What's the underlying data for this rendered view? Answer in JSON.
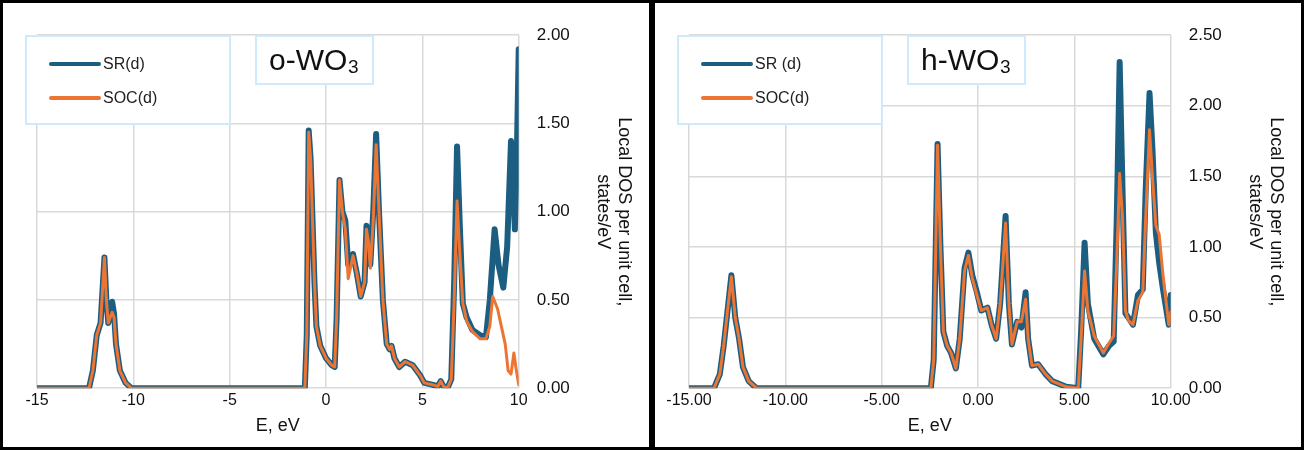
{
  "chart_data": [
    {
      "type": "line",
      "title": "o-WO₃",
      "xlabel": "E, eV",
      "ylabel": "Local DOS per unit cell, states/eV",
      "xlim": [
        -15,
        10
      ],
      "xticks": [
        -15,
        -10,
        -5,
        0,
        5,
        10
      ],
      "ylim": [
        0,
        2
      ],
      "yticks": [
        {
          "value": 0,
          "label": "0.00"
        },
        {
          "value": 0.5,
          "label": "0.50"
        },
        {
          "value": 1,
          "label": "1.00"
        },
        {
          "value": 1.5,
          "label": "1.50"
        },
        {
          "value": 2,
          "label": "2.00"
        }
      ],
      "grid": true,
      "legend": "top left",
      "series": [
        {
          "name": "SR(d)",
          "color": "#1b5e82",
          "x": [
            -15,
            -12.3,
            -12.1,
            -11.9,
            -11.7,
            -11.5,
            -11.4,
            -11.3,
            -11.2,
            -11.1,
            -11.0,
            -10.9,
            -10.7,
            -10.4,
            -10.1,
            -1.1,
            -1.0,
            -0.9,
            -0.8,
            -0.6,
            -0.5,
            -0.3,
            0,
            0.3,
            0.45,
            0.55,
            0.7,
            0.85,
            1.0,
            1.15,
            1.4,
            1.6,
            1.8,
            2.0,
            2.1,
            2.2,
            2.3,
            2.45,
            2.6,
            2.75,
            2.95,
            3.15,
            3.3,
            3.4,
            3.55,
            3.8,
            4.1,
            4.5,
            4.9,
            5.1,
            5.5,
            5.8,
            5.95,
            6.1,
            6.3,
            6.5,
            6.65,
            6.8,
            6.95,
            7.1,
            7.3,
            7.6,
            8.0,
            8.3,
            8.5,
            8.75,
            8.95,
            9.2,
            9.4,
            9.6,
            9.7,
            9.8,
            9.9,
            10
          ],
          "values": [
            0,
            0,
            0.1,
            0.3,
            0.37,
            0.74,
            0.5,
            0.37,
            0.42,
            0.49,
            0.42,
            0.25,
            0.1,
            0.03,
            0,
            0,
            0.3,
            1.46,
            1.3,
            0.6,
            0.35,
            0.24,
            0.17,
            0.13,
            0.12,
            0.4,
            1.18,
            1.0,
            0.95,
            0.7,
            0.76,
            0.65,
            0.52,
            0.6,
            0.92,
            0.85,
            0.7,
            1.0,
            1.44,
            1.0,
            0.5,
            0.25,
            0.22,
            0.24,
            0.17,
            0.12,
            0.15,
            0.13,
            0.07,
            0.03,
            0.02,
            0.01,
            0.04,
            0.01,
            0,
            0.05,
            0.6,
            1.37,
            0.9,
            0.48,
            0.4,
            0.33,
            0.3,
            0.29,
            0.5,
            0.9,
            0.7,
            0.57,
            0.8,
            1.4,
            1.2,
            0.9,
            1.3,
            1.92
          ]
        },
        {
          "name": "SOC(d)",
          "color": "#ec7533",
          "x": [
            -15,
            -12.3,
            -12.1,
            -11.9,
            -11.7,
            -11.5,
            -11.4,
            -11.3,
            -11.2,
            -11.1,
            -11.0,
            -10.9,
            -10.7,
            -10.4,
            -10.1,
            -1.1,
            -1.0,
            -0.9,
            -0.8,
            -0.6,
            -0.5,
            -0.3,
            0,
            0.3,
            0.45,
            0.55,
            0.7,
            0.85,
            1.0,
            1.15,
            1.4,
            1.6,
            1.8,
            2.0,
            2.1,
            2.2,
            2.3,
            2.45,
            2.6,
            2.75,
            2.95,
            3.15,
            3.3,
            3.4,
            3.55,
            3.8,
            4.1,
            4.5,
            4.9,
            5.1,
            5.5,
            5.8,
            5.95,
            6.1,
            6.3,
            6.5,
            6.65,
            6.8,
            6.95,
            7.1,
            7.3,
            7.6,
            8.0,
            8.3,
            8.5,
            8.65,
            8.9,
            9.1,
            9.3,
            9.45,
            9.6,
            9.75,
            9.85,
            10
          ],
          "values": [
            0,
            0,
            0.1,
            0.3,
            0.37,
            0.74,
            0.5,
            0.37,
            0.4,
            0.43,
            0.4,
            0.25,
            0.1,
            0.03,
            0,
            0,
            0.3,
            1.45,
            1.3,
            0.6,
            0.35,
            0.24,
            0.17,
            0.13,
            0.12,
            0.4,
            1.18,
            1.0,
            0.9,
            0.62,
            0.75,
            0.65,
            0.52,
            0.6,
            0.9,
            0.83,
            0.68,
            0.95,
            1.38,
            1.0,
            0.5,
            0.25,
            0.22,
            0.24,
            0.17,
            0.12,
            0.15,
            0.13,
            0.07,
            0.03,
            0.02,
            0.01,
            0.04,
            0.01,
            0,
            0.05,
            0.5,
            1.06,
            0.75,
            0.48,
            0.38,
            0.32,
            0.28,
            0.28,
            0.35,
            0.52,
            0.45,
            0.35,
            0.25,
            0.1,
            0.08,
            0.2,
            0.12,
            0.02
          ]
        }
      ]
    },
    {
      "type": "line",
      "title": "h-WO₃",
      "xlabel": "E, eV",
      "ylabel": "Local DOS per unit cell, states/eV",
      "xlim": [
        -15,
        10
      ],
      "xticks": [
        {
          "value": -15,
          "label": "-15.00"
        },
        {
          "value": -10,
          "label": "-10.00"
        },
        {
          "value": -5,
          "label": "-5.00"
        },
        {
          "value": 0,
          "label": "0.00"
        },
        {
          "value": 5,
          "label": "5.00"
        },
        {
          "value": 10,
          "label": "10.00"
        }
      ],
      "ylim": [
        0,
        2.5
      ],
      "yticks": [
        {
          "value": 0,
          "label": "0.00"
        },
        {
          "value": 0.5,
          "label": "0.50"
        },
        {
          "value": 1,
          "label": "1.00"
        },
        {
          "value": 1.5,
          "label": "1.50"
        },
        {
          "value": 2,
          "label": "2.00"
        },
        {
          "value": 2.5,
          "label": "2.50"
        }
      ],
      "grid": true,
      "legend": "top left",
      "series": [
        {
          "name": "SR (d)",
          "color": "#1b5e82",
          "x": [
            -15,
            -13.7,
            -13.4,
            -13.2,
            -13.0,
            -12.8,
            -12.6,
            -12.4,
            -12.2,
            -11.9,
            -11.5,
            -2.45,
            -2.3,
            -2.1,
            -1.95,
            -1.8,
            -1.6,
            -1.4,
            -1.15,
            -0.95,
            -0.7,
            -0.5,
            -0.3,
            -0.06,
            0.17,
            0.49,
            0.7,
            0.94,
            1.15,
            1.43,
            1.6,
            1.76,
            2.03,
            2.25,
            2.47,
            2.6,
            2.8,
            3.12,
            3.5,
            3.85,
            4.58,
            5.2,
            5.35,
            5.53,
            5.7,
            6.03,
            6.5,
            6.8,
            7.04,
            7.2,
            7.35,
            7.5,
            7.65,
            7.8,
            8.04,
            8.3,
            8.55,
            8.7,
            8.9,
            9.05,
            9.23,
            9.4,
            9.6,
            9.9,
            10
          ],
          "values": [
            0,
            0,
            0.1,
            0.3,
            0.55,
            0.8,
            0.5,
            0.35,
            0.15,
            0.05,
            0,
            0,
            0.2,
            1.73,
            1.0,
            0.4,
            0.3,
            0.25,
            0.14,
            0.35,
            0.85,
            0.96,
            0.8,
            0.68,
            0.55,
            0.57,
            0.45,
            0.35,
            0.6,
            1.22,
            0.6,
            0.31,
            0.47,
            0.43,
            0.68,
            0.35,
            0.16,
            0.17,
            0.1,
            0.05,
            0.01,
            0,
            0.4,
            1.03,
            0.6,
            0.35,
            0.24,
            0.3,
            0.33,
            1.2,
            2.31,
            1.4,
            0.53,
            0.5,
            0.45,
            0.66,
            0.7,
            1.4,
            2.09,
            1.7,
            1.1,
            0.89,
            0.7,
            0.45,
            0.66
          ]
        },
        {
          "name": "SOC(d)",
          "color": "#ec7533",
          "x": [
            -15,
            -13.7,
            -13.4,
            -13.2,
            -13.0,
            -12.8,
            -12.6,
            -12.4,
            -12.2,
            -11.9,
            -11.5,
            -2.45,
            -2.3,
            -2.1,
            -1.95,
            -1.8,
            -1.6,
            -1.4,
            -1.15,
            -0.95,
            -0.7,
            -0.5,
            -0.3,
            -0.06,
            0.17,
            0.49,
            0.7,
            0.94,
            1.15,
            1.43,
            1.6,
            1.76,
            2.03,
            2.25,
            2.47,
            2.6,
            2.8,
            3.12,
            3.5,
            3.85,
            4.58,
            5.2,
            5.35,
            5.53,
            5.7,
            6.03,
            6.5,
            6.8,
            7.04,
            7.2,
            7.35,
            7.5,
            7.65,
            7.8,
            8.04,
            8.3,
            8.55,
            8.7,
            8.9,
            9.05,
            9.23,
            9.4,
            9.6,
            9.9,
            10
          ],
          "values": [
            0,
            0,
            0.1,
            0.3,
            0.55,
            0.79,
            0.5,
            0.35,
            0.15,
            0.05,
            0,
            0,
            0.2,
            1.72,
            1.0,
            0.4,
            0.3,
            0.25,
            0.14,
            0.35,
            0.83,
            0.94,
            0.78,
            0.66,
            0.55,
            0.57,
            0.45,
            0.35,
            0.6,
            1.17,
            0.6,
            0.31,
            0.47,
            0.47,
            0.63,
            0.35,
            0.16,
            0.17,
            0.1,
            0.05,
            0.01,
            0,
            0.35,
            0.83,
            0.55,
            0.37,
            0.25,
            0.32,
            0.37,
            0.9,
            1.52,
            1.2,
            0.55,
            0.48,
            0.45,
            0.62,
            0.68,
            1.2,
            1.83,
            1.5,
            1.15,
            1.09,
            0.8,
            0.45,
            0.54
          ]
        }
      ]
    }
  ]
}
